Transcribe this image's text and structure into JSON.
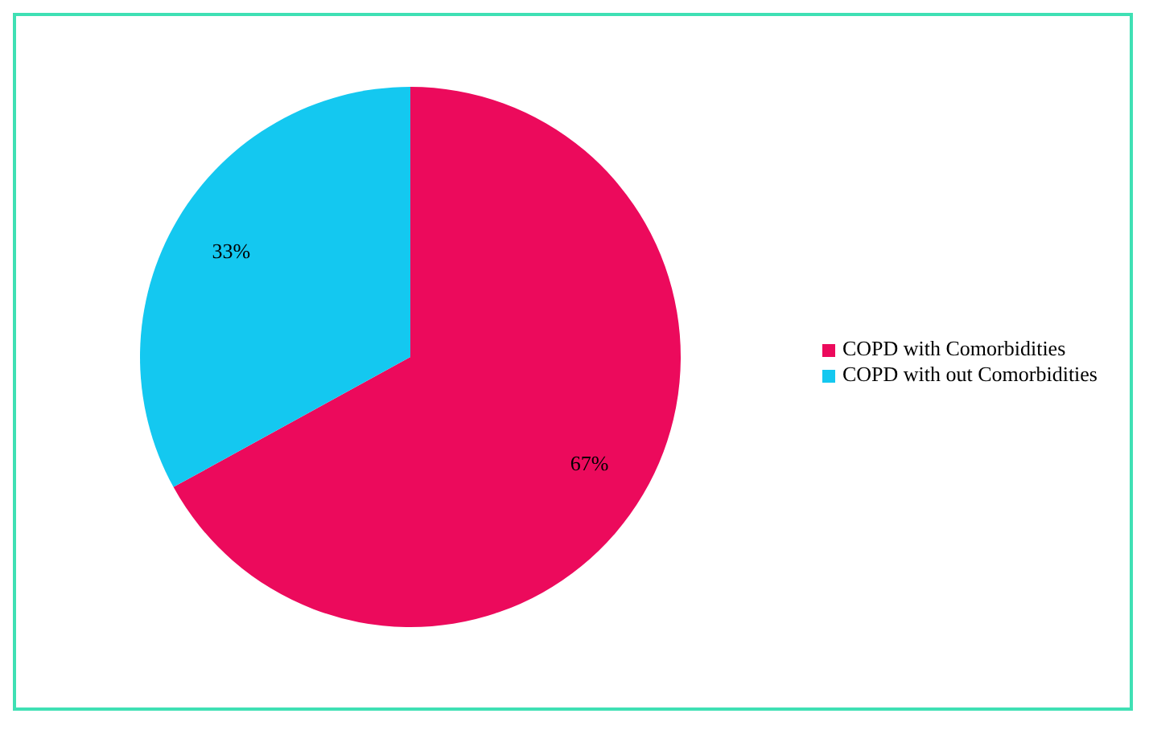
{
  "chart_data": {
    "type": "pie",
    "categories": [
      "COPD with Comorbidities",
      "COPD with out Comorbidities"
    ],
    "values": [
      67,
      33
    ],
    "value_labels": [
      "67%",
      "33%"
    ],
    "colors": [
      "#ec0a5c",
      "#14c8f0"
    ],
    "legend": "right"
  }
}
